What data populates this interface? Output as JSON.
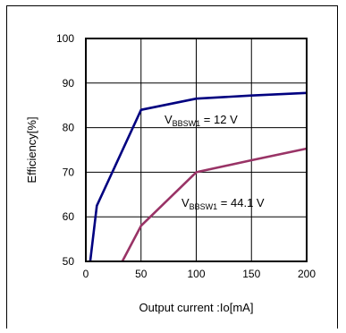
{
  "chart_data": {
    "type": "line",
    "title": "",
    "xlabel": "Output current :Io[mA]",
    "ylabel": "Efficiency[%]",
    "xlim": [
      0,
      200
    ],
    "ylim": [
      50,
      100
    ],
    "xticks": [
      "0",
      "50",
      "100",
      "150",
      "200"
    ],
    "yticks": [
      "50",
      "60",
      "70",
      "80",
      "90",
      "100"
    ],
    "grid": true,
    "series": [
      {
        "name_main": "V",
        "name_sub": "BBSW1",
        "name_rest": " = 12 V",
        "color": "#000080",
        "x": [
          4,
          10,
          50,
          100,
          150,
          200
        ],
        "y": [
          50,
          62.5,
          84,
          86.5,
          87.2,
          87.8
        ]
      },
      {
        "name_main": "V",
        "name_sub": "BBSW1",
        "name_rest": " = 44.1 V",
        "color": "#993366",
        "x": [
          33,
          50,
          100,
          150,
          200
        ],
        "y": [
          50,
          58,
          70,
          72.7,
          75.3
        ]
      }
    ]
  }
}
